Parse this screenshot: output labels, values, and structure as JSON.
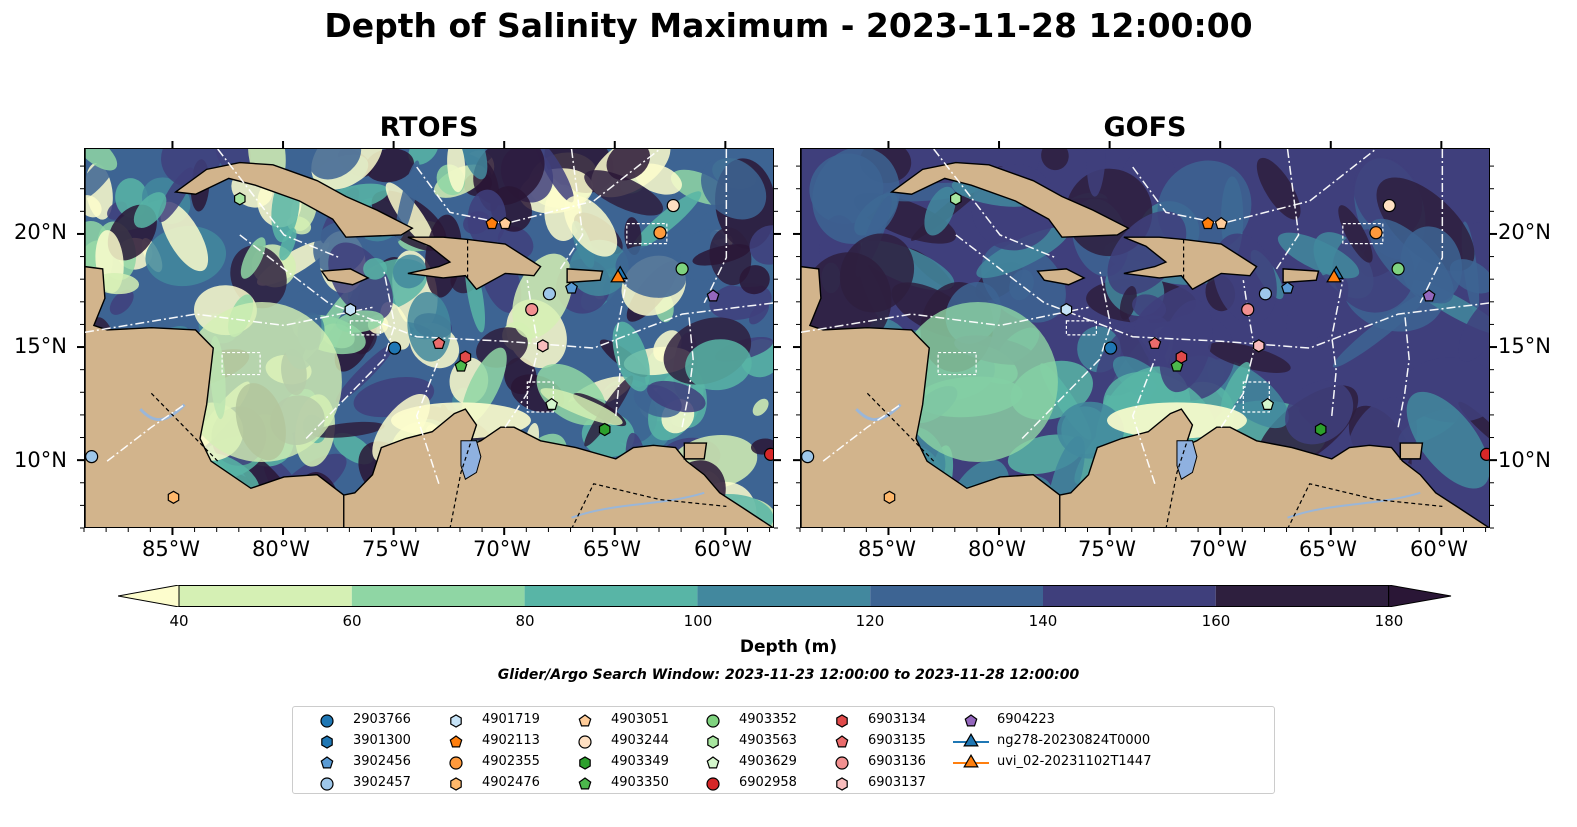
{
  "title": "Depth of Salinity Maximum - 2023-11-28 12:00:00",
  "panels": [
    {
      "title": "RTOFS"
    },
    {
      "title": "GOFS"
    }
  ],
  "axes": {
    "lon_labels": [
      "85°W",
      "80°W",
      "75°W",
      "70°W",
      "65°W",
      "60°W"
    ],
    "lat_labels": [
      "20°N",
      "15°N",
      "10°N"
    ]
  },
  "colorbar": {
    "label": "Depth (m)",
    "ticks": [
      "40",
      "60",
      "80",
      "100",
      "120",
      "140",
      "160",
      "180"
    ],
    "colors": [
      "#fdfdcd",
      "#d5f0b4",
      "#8fd6a4",
      "#58b5a6",
      "#42889e",
      "#3d6493",
      "#3f3f7c",
      "#2e1f3e",
      "#2a1636"
    ],
    "extend": "both"
  },
  "search_window": "Glider/Argo Search Window: 2023-11-23 12:00:00 to 2023-11-28 12:00:00",
  "colors": {
    "land": "#d2b48c",
    "lake": "#8fb1e0",
    "river": "#9ab6d8"
  },
  "legend": [
    {
      "label": "2903766",
      "marker": "circle",
      "color": "#1f77b4"
    },
    {
      "label": "3901300",
      "marker": "hexagon",
      "color": "#1f77b4"
    },
    {
      "label": "3902456",
      "marker": "pentagon",
      "color": "#5a9bd5"
    },
    {
      "label": "3902457",
      "marker": "circle",
      "color": "#9ec7ea"
    },
    {
      "label": "4901719",
      "marker": "hexagon",
      "color": "#c6e3f7"
    },
    {
      "label": "4902113",
      "marker": "pentagon",
      "color": "#ff7f0e"
    },
    {
      "label": "4902355",
      "marker": "circle",
      "color": "#ff9a3c"
    },
    {
      "label": "4902476",
      "marker": "hexagon",
      "color": "#ffb86b"
    },
    {
      "label": "4903051",
      "marker": "pentagon",
      "color": "#ffcc99"
    },
    {
      "label": "4903244",
      "marker": "circle",
      "color": "#ffe0c2"
    },
    {
      "label": "4903349",
      "marker": "hexagon",
      "color": "#2ca02c"
    },
    {
      "label": "4903350",
      "marker": "pentagon",
      "color": "#4cb84c"
    },
    {
      "label": "4903352",
      "marker": "circle",
      "color": "#7fd37f"
    },
    {
      "label": "4903563",
      "marker": "hexagon",
      "color": "#a8e6a0"
    },
    {
      "label": "4903629",
      "marker": "pentagon",
      "color": "#d4f7cc"
    },
    {
      "label": "6902958",
      "marker": "circle",
      "color": "#d62728"
    },
    {
      "label": "6903134",
      "marker": "hexagon",
      "color": "#e04a4a"
    },
    {
      "label": "6903135",
      "marker": "pentagon",
      "color": "#ea6b6b"
    },
    {
      "label": "6903136",
      "marker": "circle",
      "color": "#f29090"
    },
    {
      "label": "6903137",
      "marker": "hexagon",
      "color": "#f8bcbc"
    },
    {
      "label": "6904223",
      "marker": "pentagon",
      "color": "#9467bd"
    },
    {
      "label": "ng278-20230824T0000",
      "marker": "triangle-line",
      "color": "#1f77b4"
    },
    {
      "label": "uvi_02-20231102T1447",
      "marker": "triangle-line",
      "color": "#ff7f0e"
    }
  ],
  "markers": [
    {
      "id": "2903766",
      "lon": -75.0,
      "lat": 15.0,
      "rtofs_lon": -75.0,
      "rtofs_lat": 15.0
    },
    {
      "id": "3902457",
      "lon": -88.7,
      "lat": 10.2
    },
    {
      "id": "3902456",
      "lon": -67.0,
      "lat": 17.65
    },
    {
      "id": "3902457b",
      "lon": -68.0,
      "lat": 17.4
    },
    {
      "id": "4901719",
      "lon": -77.0,
      "lat": 16.7
    },
    {
      "id": "4902113",
      "lon": -70.6,
      "lat": 20.5
    },
    {
      "id": "4902476",
      "lon": -85.0,
      "lat": 8.4
    },
    {
      "id": "4903051",
      "lon": -70.0,
      "lat": 20.5
    },
    {
      "id": "4902355",
      "lon": -63.0,
      "lat": 20.1
    },
    {
      "id": "4903244",
      "lon": -62.4,
      "lat": 21.3
    },
    {
      "id": "4903349",
      "lon": -65.5,
      "lat": 11.4
    },
    {
      "id": "4903350",
      "lon": -72.0,
      "lat": 14.2
    },
    {
      "id": "4903352",
      "lon": -62.0,
      "lat": 18.5
    },
    {
      "id": "4903563",
      "lon": -82.0,
      "lat": 21.6
    },
    {
      "id": "4903629",
      "lon": -67.9,
      "lat": 12.5
    },
    {
      "id": "6902958",
      "lon": -58.0,
      "lat": 10.3
    },
    {
      "id": "6903134",
      "lon": -71.8,
      "lat": 14.6
    },
    {
      "id": "6903135",
      "lon": -73.0,
      "lat": 15.2
    },
    {
      "id": "6903136",
      "lon": -68.8,
      "lat": 16.7
    },
    {
      "id": "6903137",
      "lon": -68.3,
      "lat": 15.1
    },
    {
      "id": "6904223",
      "lon": -60.6,
      "lat": 17.3
    },
    {
      "id": "ng278",
      "lon": -64.8,
      "lat": 18.25
    },
    {
      "id": "uvi_02",
      "lon": -64.9,
      "lat": 18.1
    }
  ]
}
